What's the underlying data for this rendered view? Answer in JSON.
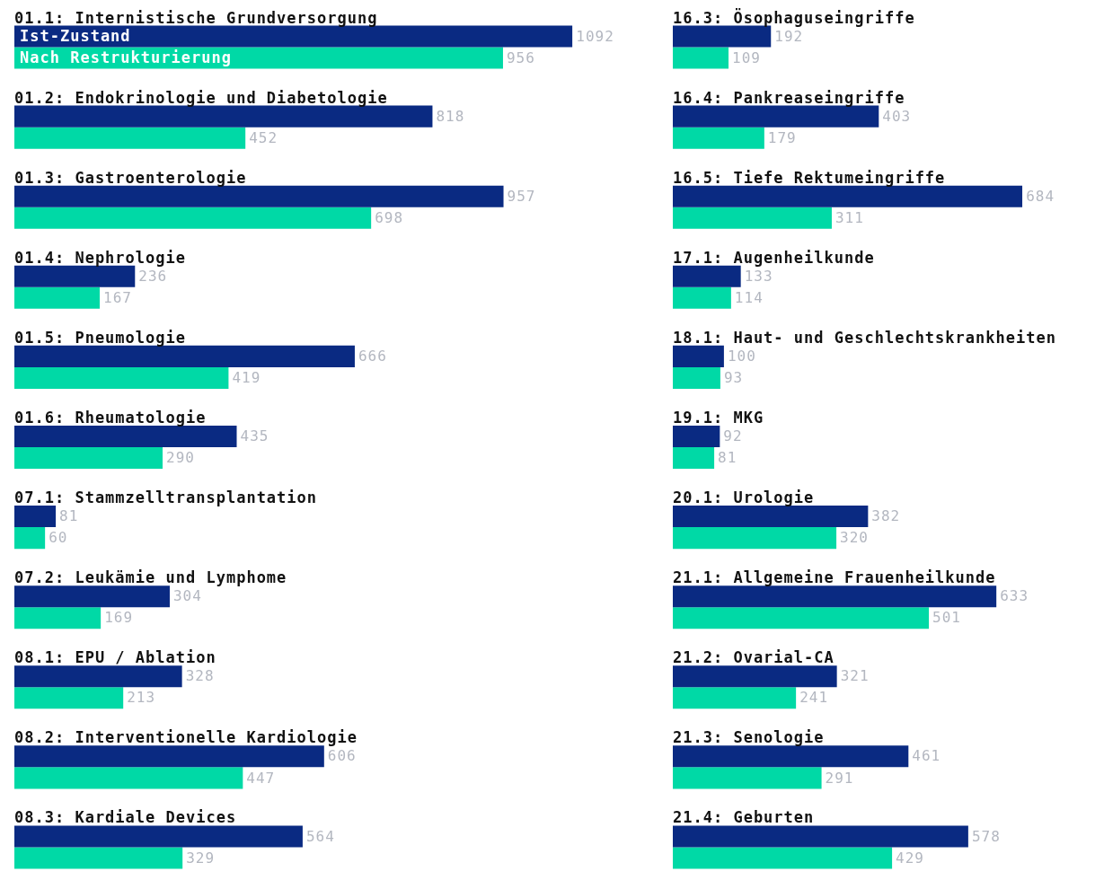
{
  "chart_data": [
    {
      "type": "bar",
      "orientation": "horizontal",
      "data_labels": true,
      "categories": [
        "01.1: Internistische Grundversorgung",
        "01.2: Endokrinologie und Diabetologie",
        "01.3: Gastroenterologie",
        "01.4: Nephrologie",
        "01.5: Pneumologie",
        "01.6: Rheumatologie",
        "07.1: Stammzelltransplantation",
        "07.2: Leukämie und Lymphome",
        "08.1: EPU / Ablation",
        "08.2: Interventionelle Kardiologie",
        "08.3: Kardiale Devices"
      ],
      "series": [
        {
          "name": "Ist-Zustand",
          "color": "#0a2a82",
          "values": [
            1092,
            818,
            957,
            236,
            666,
            435,
            81,
            304,
            328,
            606,
            564
          ]
        },
        {
          "name": "Nach Restrukturierung",
          "color": "#00d9a6",
          "values": [
            956,
            452,
            698,
            167,
            419,
            290,
            60,
            169,
            213,
            447,
            329
          ]
        }
      ]
    },
    {
      "type": "bar",
      "orientation": "horizontal",
      "data_labels": true,
      "categories": [
        "16.3: Ösophaguseingriffe",
        "16.4: Pankreaseingriffe",
        "16.5: Tiefe Rektumeingriffe",
        "17.1: Augenheilkunde",
        "18.1: Haut- und Geschlechtskrankheiten",
        "19.1: MKG",
        "20.1: Urologie",
        "21.1: Allgemeine Frauenheilkunde",
        "21.2: Ovarial-CA",
        "21.3: Senologie",
        "21.4: Geburten"
      ],
      "series": [
        {
          "color": "#0a2a82",
          "values": [
            192,
            403,
            684,
            133,
            100,
            92,
            382,
            633,
            321,
            461,
            578
          ]
        },
        {
          "color": "#00d9a6",
          "values": [
            109,
            179,
            311,
            114,
            93,
            81,
            320,
            501,
            241,
            291,
            429
          ]
        }
      ]
    }
  ]
}
